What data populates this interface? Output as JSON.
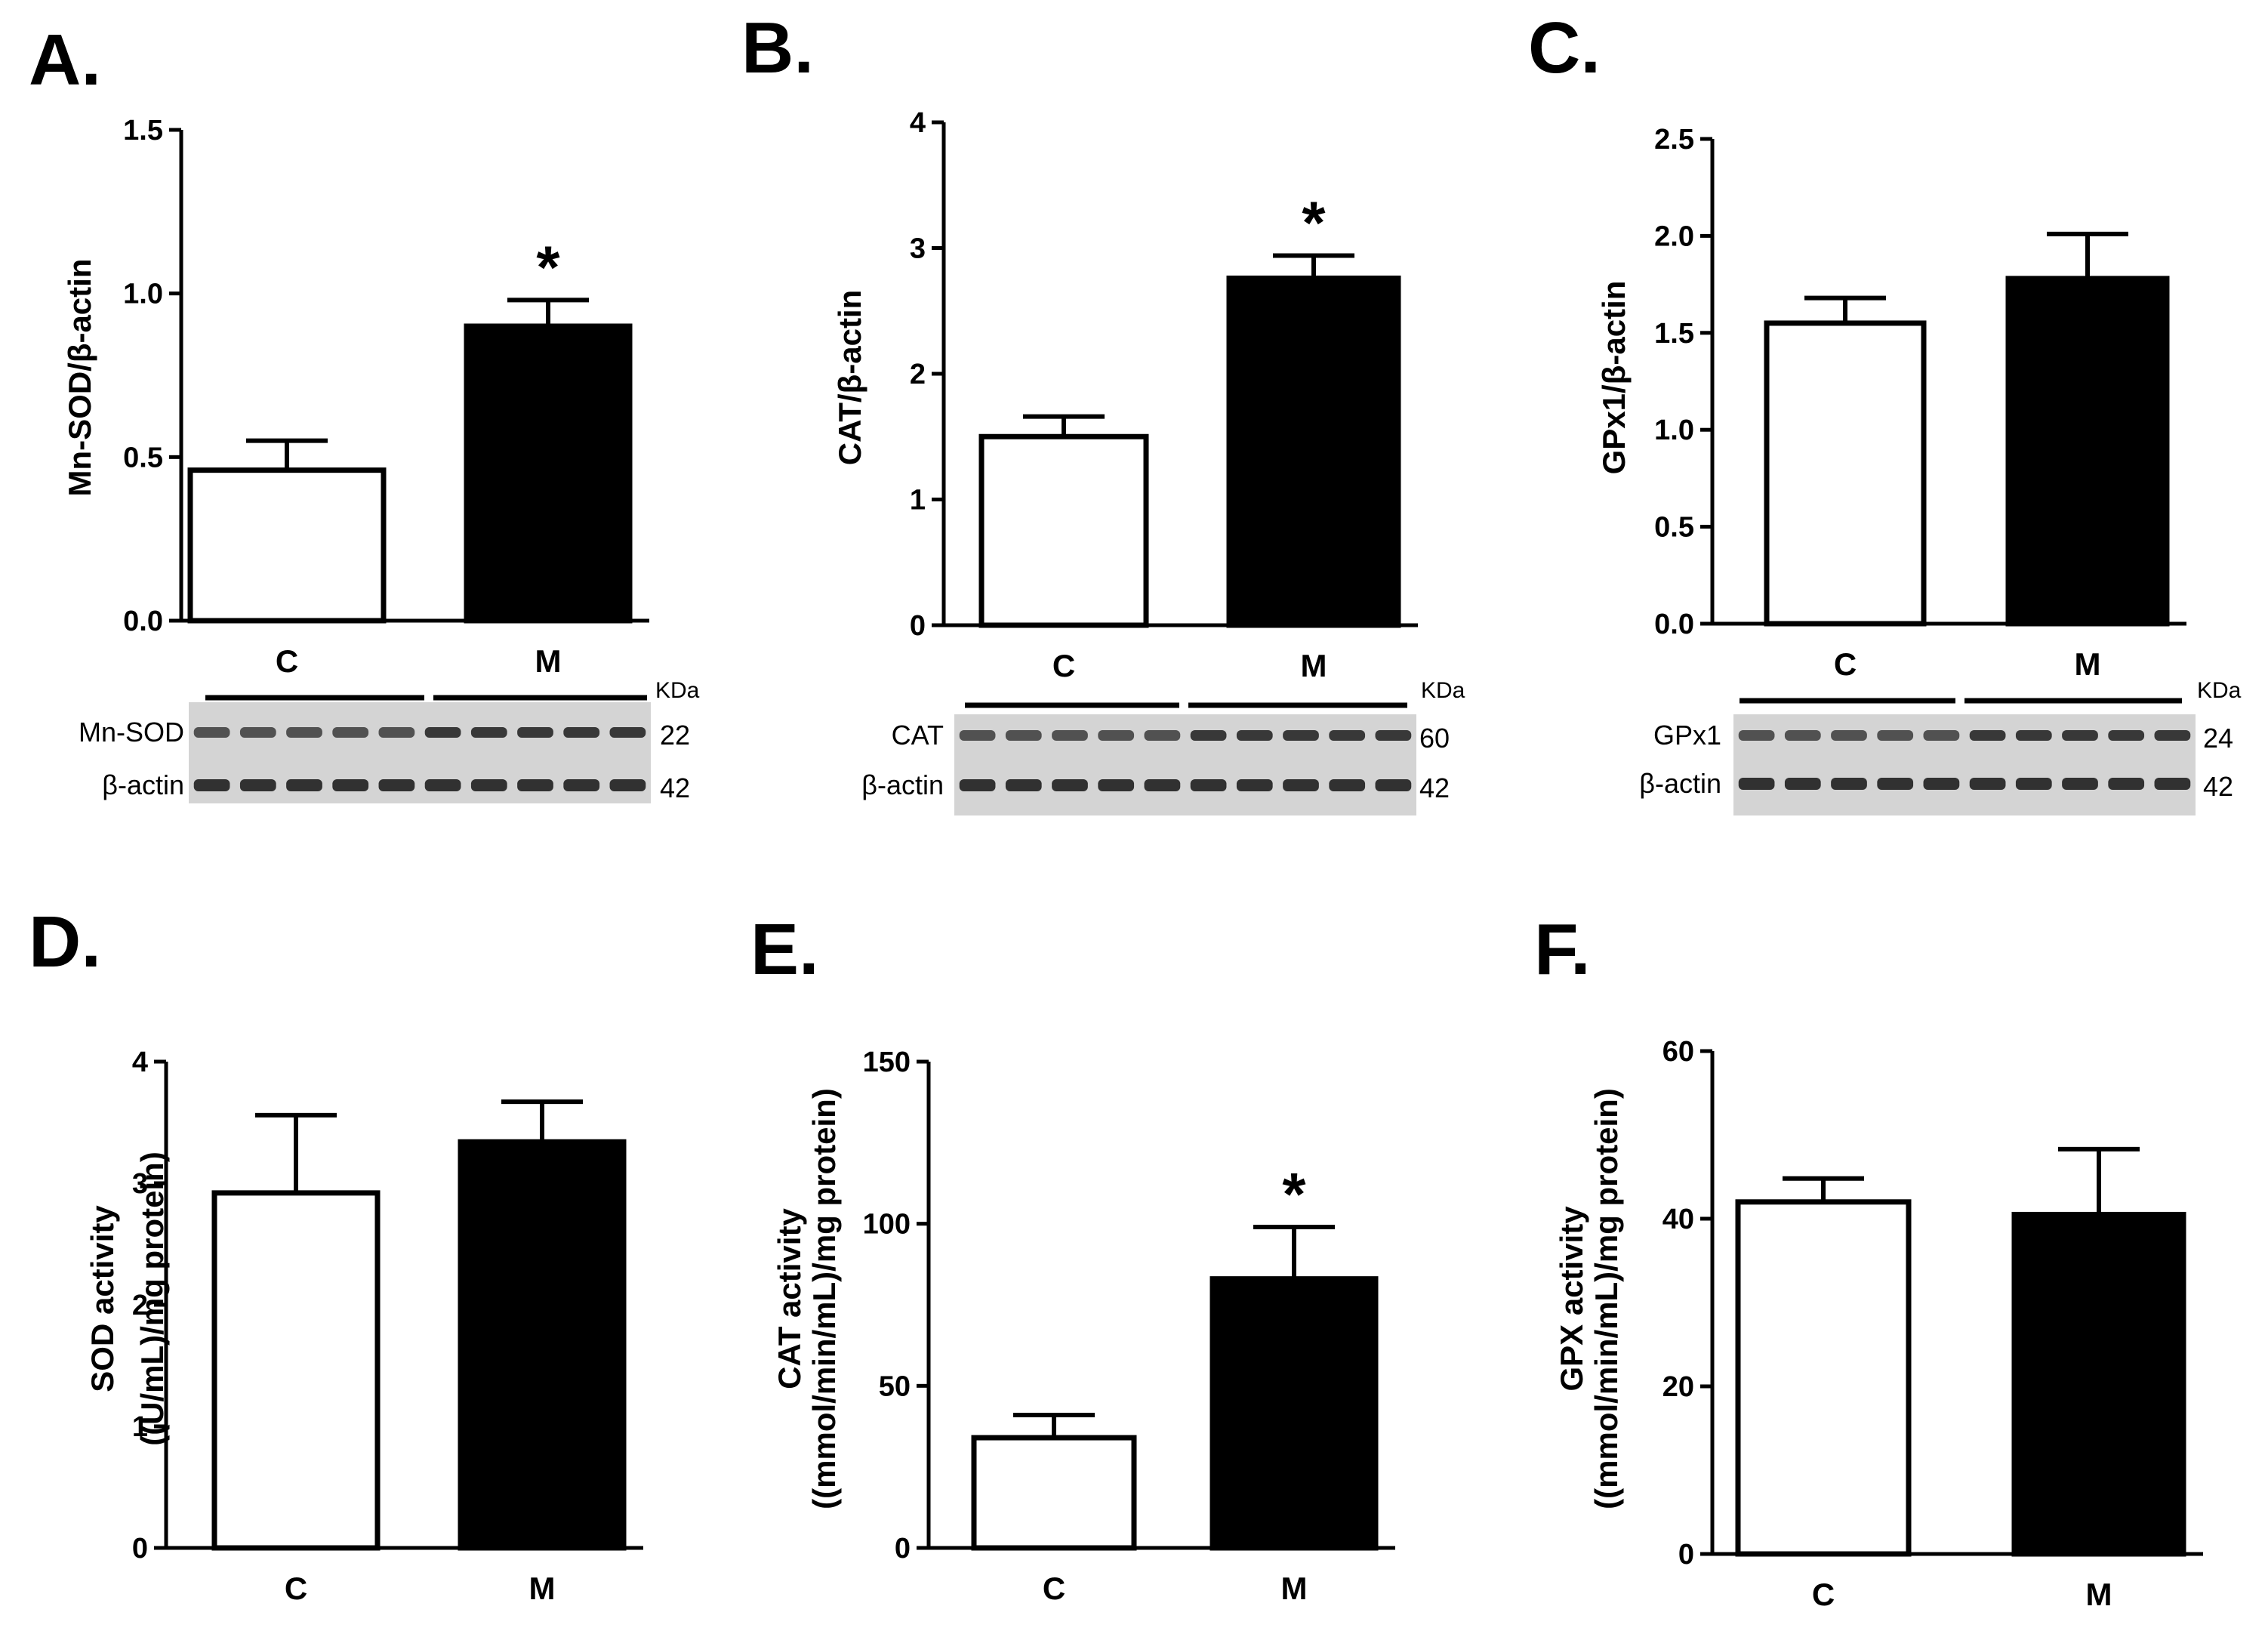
{
  "colors": {
    "control": "#ffffff",
    "treated": "#000000",
    "axis": "#000000"
  },
  "chart_data": [
    {
      "panel": "A.",
      "type": "bar",
      "categories": [
        "C",
        "M"
      ],
      "values": [
        0.46,
        0.9
      ],
      "errors": [
        0.09,
        0.08
      ],
      "significant": [
        false,
        true
      ],
      "sig_marker": "*",
      "ylabel": "Mn-SOD/β-actin",
      "ylim": [
        0,
        1.5
      ],
      "yticks": [
        "0.0",
        "0.5",
        "1.0",
        "1.5"
      ],
      "blot": {
        "kda_label": "KDa",
        "rows": [
          {
            "label": "Mn-SOD",
            "kda": "22"
          },
          {
            "label": "β-actin",
            "kda": "42"
          }
        ]
      }
    },
    {
      "panel": "B.",
      "type": "bar",
      "categories": [
        "C",
        "M"
      ],
      "values": [
        1.5,
        2.76
      ],
      "errors": [
        0.16,
        0.18
      ],
      "significant": [
        false,
        true
      ],
      "sig_marker": "*",
      "ylabel": "CAT/β-actin",
      "ylim": [
        0,
        4
      ],
      "yticks": [
        "0",
        "1",
        "2",
        "3",
        "4"
      ],
      "blot": {
        "kda_label": "KDa",
        "rows": [
          {
            "label": "CAT",
            "kda": "60"
          },
          {
            "label": "β-actin",
            "kda": "42"
          }
        ]
      }
    },
    {
      "panel": "C.",
      "type": "bar",
      "categories": [
        "C",
        "M"
      ],
      "values": [
        1.55,
        1.78
      ],
      "errors": [
        0.13,
        0.23
      ],
      "significant": [
        false,
        false
      ],
      "sig_marker": "*",
      "ylabel": "GPx1/β-actin",
      "ylim": [
        0,
        2.5
      ],
      "yticks": [
        "0.0",
        "0.5",
        "1.0",
        "1.5",
        "2.0",
        "2.5"
      ],
      "blot": {
        "kda_label": "KDa",
        "rows": [
          {
            "label": "GPx1",
            "kda": "24"
          },
          {
            "label": "β-actin",
            "kda": "42"
          }
        ]
      }
    },
    {
      "panel": "D.",
      "type": "bar",
      "categories": [
        "C",
        "M"
      ],
      "values": [
        2.92,
        3.34
      ],
      "errors": [
        0.64,
        0.33
      ],
      "significant": [
        false,
        false
      ],
      "sig_marker": "*",
      "ylabel": [
        "SOD activity",
        "((U/mL)/mg protein)"
      ],
      "ylim": [
        0,
        4
      ],
      "yticks": [
        "0",
        "1",
        "2",
        "3",
        "4"
      ]
    },
    {
      "panel": "E.",
      "type": "bar",
      "categories": [
        "C",
        "M"
      ],
      "values": [
        34,
        83
      ],
      "errors": [
        7,
        16
      ],
      "significant": [
        false,
        true
      ],
      "sig_marker": "*",
      "ylabel": [
        "CAT activity",
        "((mmol/min/mL)/mg protein)"
      ],
      "ylim": [
        0,
        150
      ],
      "yticks": [
        "0",
        "50",
        "100",
        "150"
      ]
    },
    {
      "panel": "F.",
      "type": "bar",
      "categories": [
        "C",
        "M"
      ],
      "values": [
        42,
        40.5
      ],
      "errors": [
        2.8,
        7.8
      ],
      "significant": [
        false,
        false
      ],
      "sig_marker": "*",
      "ylabel": [
        "GPX activity",
        "((mmol/min/mL)/mg protein)"
      ],
      "ylim": [
        0,
        60
      ],
      "yticks": [
        "0",
        "20",
        "40",
        "60"
      ]
    }
  ]
}
